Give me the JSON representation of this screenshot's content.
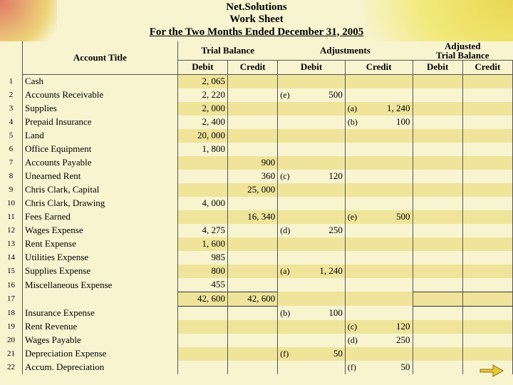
{
  "header": {
    "company": "Net.Solutions",
    "title": "Work Sheet",
    "period": "For the Two Months Ended December 31, 2005"
  },
  "sections": {
    "trial_balance": "Trial Balance",
    "adjustments": "Adjustments",
    "adj_trial_balance_l1": "Adjusted",
    "adj_trial_balance_l2": "Trial Balance"
  },
  "cols": {
    "account_title": "Account Title",
    "debit": "Debit",
    "credit": "Credit"
  },
  "rows": [
    {
      "n": "1",
      "acct": "Cash",
      "tbD": "2, 065"
    },
    {
      "n": "2",
      "acct": "Accounts Receivable",
      "tbD": "2, 220",
      "adjD_ref": "(e)",
      "adjD_amt": "500"
    },
    {
      "n": "3",
      "acct": "Supplies",
      "tbD": "2, 000",
      "adjC_ref": "(a)",
      "adjC_amt": "1, 240"
    },
    {
      "n": "4",
      "acct": "Prepaid Insurance",
      "tbD": "2, 400",
      "adjC_ref": "(b)",
      "adjC_amt": "100"
    },
    {
      "n": "5",
      "acct": "Land",
      "tbD": "20, 000"
    },
    {
      "n": "6",
      "acct": "Office Equipment",
      "tbD": "1, 800"
    },
    {
      "n": "7",
      "acct": "Accounts Payable",
      "tbC": "900"
    },
    {
      "n": "8",
      "acct": "Unearned Rent",
      "tbC": "360",
      "adjD_ref": "(c)",
      "adjD_amt": "120"
    },
    {
      "n": "9",
      "acct": "Chris Clark, Capital",
      "tbC": "25, 000"
    },
    {
      "n": "10",
      "acct": "Chris Clark, Drawing",
      "tbD": "4, 000"
    },
    {
      "n": "11",
      "acct": "Fees Earned",
      "tbC": "16, 340",
      "adjC_ref": "(e)",
      "adjC_amt": "500"
    },
    {
      "n": "12",
      "acct": "Wages Expense",
      "tbD": "4, 275",
      "adjD_ref": "(d)",
      "adjD_amt": "250"
    },
    {
      "n": "13",
      "acct": "Rent Expense",
      "tbD": "1, 600"
    },
    {
      "n": "14",
      "acct": "Utilities Expense",
      "tbD": "985"
    },
    {
      "n": "15",
      "acct": "Supplies Expense",
      "tbD": "800",
      "adjD_ref": "(a)",
      "adjD_amt": "1, 240"
    },
    {
      "n": "16",
      "acct": "Miscellaneous Expense",
      "tbD": "455"
    },
    {
      "n": "17",
      "acct": "",
      "tbD": "42, 600",
      "tbC": "42, 600",
      "total": true
    },
    {
      "n": "18",
      "acct": "Insurance Expense",
      "adjD_ref": "(b)",
      "adjD_amt": "100"
    },
    {
      "n": "19",
      "acct": "Rent Revenue",
      "adjC_ref": "(c)",
      "adjC_amt": "120"
    },
    {
      "n": "20",
      "acct": "Wages Payable",
      "adjC_ref": "(d)",
      "adjC_amt": "250"
    },
    {
      "n": "21",
      "acct": " Depreciation Expense",
      "adjD_ref": "(f)",
      "adjD_amt": "50"
    },
    {
      "n": "22",
      "acct": " Accum. Depreciation",
      "adjC_ref": "(f)",
      "adjC_amt": "50"
    }
  ],
  "colors": {
    "stripe": "#f0e49a",
    "plain": "#f8f4d0",
    "border": "#555555"
  }
}
